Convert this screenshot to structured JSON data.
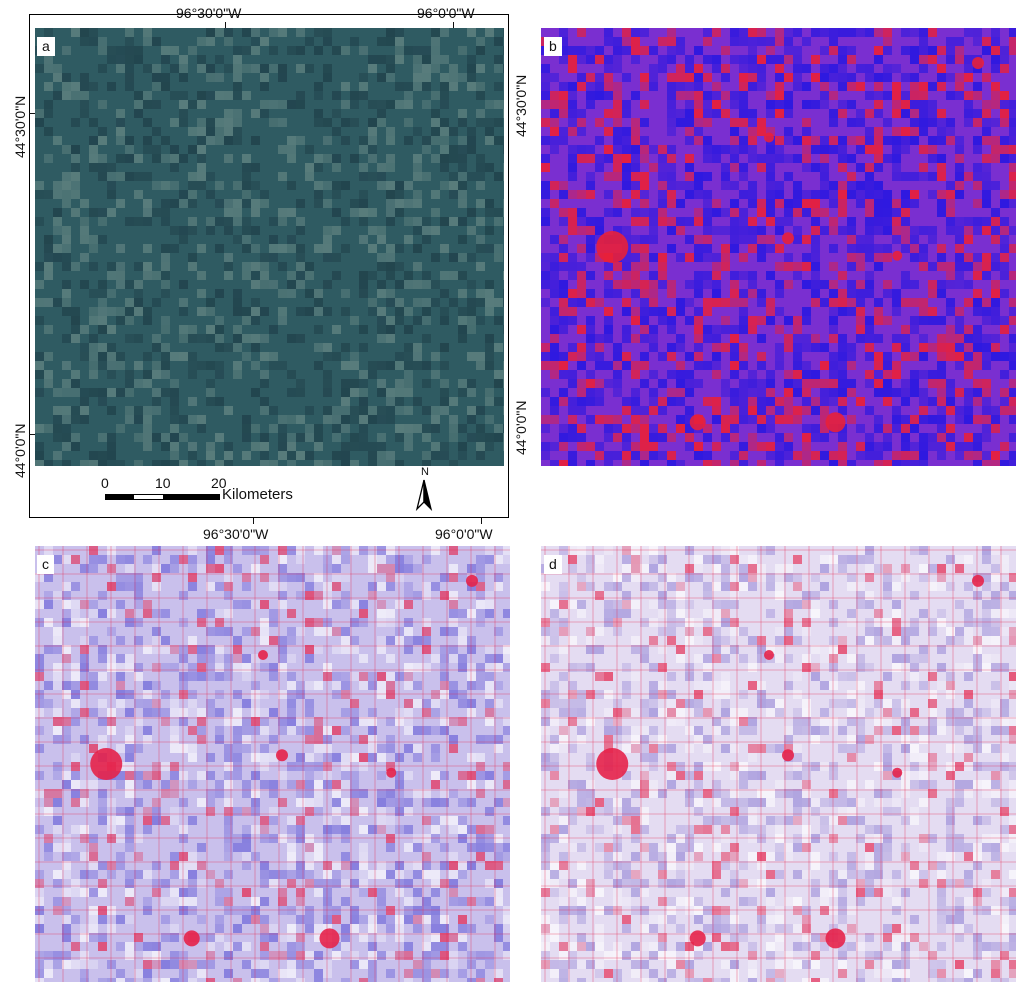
{
  "figure": {
    "panels": [
      {
        "id": "a",
        "label": "a",
        "colors": {
          "base": "#2f5b62",
          "light": "#6f8f8a",
          "dark": "#1c3a44"
        }
      },
      {
        "id": "b",
        "label": "b",
        "colors": {
          "base": "#7a2fd0",
          "red": "#e8203a",
          "blue": "#2a18e0"
        }
      },
      {
        "id": "c",
        "label": "c",
        "colors": {
          "base": "#c9c0ec",
          "red": "#e6224a",
          "blue": "#6a62d8"
        }
      },
      {
        "id": "d",
        "label": "d",
        "colors": {
          "base": "#e4dcf2",
          "red": "#e6224a",
          "blue": "#9a8cd8"
        }
      }
    ],
    "graticule": {
      "top_lon": [
        "96°30'0\"W",
        "96°0'0\"W"
      ],
      "bottom_lon": [
        "96°30'0\"W",
        "96°0'0\"W"
      ],
      "left_lat": [
        "44°30'0\"N",
        "44°0'0\"N"
      ],
      "right_lat": [
        "44°30'0\"N",
        "44°0'0\"N"
      ]
    },
    "scale_bar": {
      "labels": [
        "0",
        "10",
        "20"
      ],
      "unit": "Kilometers"
    },
    "north_arrow": {
      "label": "N"
    }
  }
}
